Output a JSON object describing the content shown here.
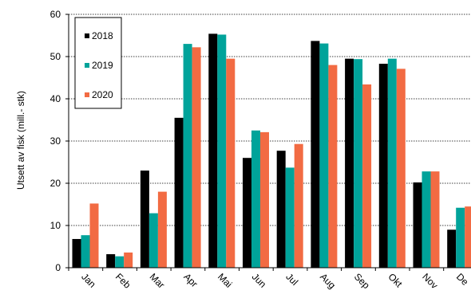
{
  "chart_data": {
    "type": "bar",
    "title": "",
    "xlabel": "",
    "ylabel": "Utsett av fisk (mill.- stk)",
    "ylim": [
      0,
      60
    ],
    "yticks": [
      0,
      10,
      20,
      30,
      40,
      50,
      60
    ],
    "grid": "horizontal-dotted",
    "legend_position": "top-left",
    "categories": [
      "Jan",
      "Feb",
      "Mar",
      "Apr",
      "Mai",
      "Jun",
      "Jul",
      "Aug",
      "Sep",
      "Okt",
      "Nov",
      "Des"
    ],
    "category_labels": [
      "Jan",
      "Feb",
      "Mar",
      "Apr",
      "Mai",
      "Jun",
      "Jul",
      "Aug",
      "Sep",
      "Okt",
      "Nov",
      "De"
    ],
    "series": [
      {
        "name": "2018",
        "color": "#000000",
        "values": [
          6.8,
          3.2,
          23.0,
          35.5,
          55.4,
          26.0,
          27.7,
          53.7,
          49.5,
          48.3,
          20.2,
          9.0
        ]
      },
      {
        "name": "2019",
        "color": "#00a39a",
        "values": [
          7.7,
          2.7,
          12.9,
          53.0,
          55.2,
          32.5,
          23.7,
          53.1,
          49.4,
          49.5,
          22.8,
          14.2
        ]
      },
      {
        "name": "2020",
        "color": "#f26b43",
        "values": [
          15.2,
          3.6,
          18.0,
          52.2,
          49.5,
          32.1,
          29.3,
          48.0,
          43.4,
          47.1,
          22.8,
          14.5
        ]
      }
    ]
  }
}
